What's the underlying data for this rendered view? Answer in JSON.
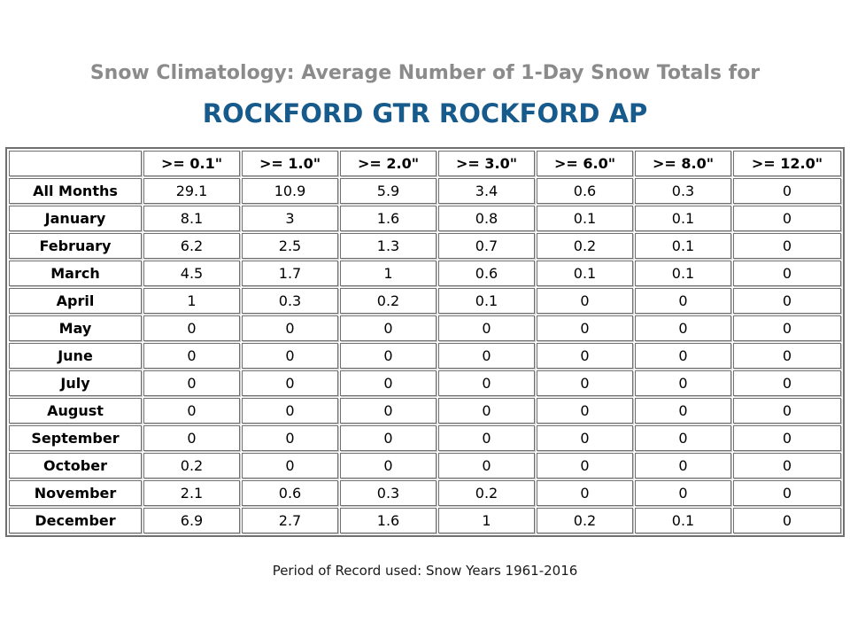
{
  "header": {
    "title": "Snow Climatology: Average Number of 1-Day Snow Totals for",
    "station": "ROCKFORD GTR ROCKFORD AP"
  },
  "footer": {
    "text": "Period of Record used: Snow Years 1961-2016"
  },
  "colors": {
    "title_gray": "#8b8b8b",
    "station_blue": "#175a8c",
    "table_border_gray": "#6f6f6f",
    "text_black": "#000000",
    "background": "#ffffff"
  },
  "chart_data": {
    "type": "table",
    "title": "Snow Climatology: Average Number of 1-Day Snow Totals for ROCKFORD GTR ROCKFORD AP",
    "subtitle": "Period of Record used: Snow Years 1961-2016",
    "columns": [
      "",
      ">= 0.1\"",
      ">= 1.0\"",
      ">= 2.0\"",
      ">= 3.0\"",
      ">= 6.0\"",
      ">= 8.0\"",
      ">= 12.0\""
    ],
    "rows": [
      {
        "label": "All Months",
        "values": [
          "29.1",
          "10.9",
          "5.9",
          "3.4",
          "0.6",
          "0.3",
          "0"
        ]
      },
      {
        "label": "January",
        "values": [
          "8.1",
          "3",
          "1.6",
          "0.8",
          "0.1",
          "0.1",
          "0"
        ]
      },
      {
        "label": "February",
        "values": [
          "6.2",
          "2.5",
          "1.3",
          "0.7",
          "0.2",
          "0.1",
          "0"
        ]
      },
      {
        "label": "March",
        "values": [
          "4.5",
          "1.7",
          "1",
          "0.6",
          "0.1",
          "0.1",
          "0"
        ]
      },
      {
        "label": "April",
        "values": [
          "1",
          "0.3",
          "0.2",
          "0.1",
          "0",
          "0",
          "0"
        ]
      },
      {
        "label": "May",
        "values": [
          "0",
          "0",
          "0",
          "0",
          "0",
          "0",
          "0"
        ]
      },
      {
        "label": "June",
        "values": [
          "0",
          "0",
          "0",
          "0",
          "0",
          "0",
          "0"
        ]
      },
      {
        "label": "July",
        "values": [
          "0",
          "0",
          "0",
          "0",
          "0",
          "0",
          "0"
        ]
      },
      {
        "label": "August",
        "values": [
          "0",
          "0",
          "0",
          "0",
          "0",
          "0",
          "0"
        ]
      },
      {
        "label": "September",
        "values": [
          "0",
          "0",
          "0",
          "0",
          "0",
          "0",
          "0"
        ]
      },
      {
        "label": "October",
        "values": [
          "0.2",
          "0",
          "0",
          "0",
          "0",
          "0",
          "0"
        ]
      },
      {
        "label": "November",
        "values": [
          "2.1",
          "0.6",
          "0.3",
          "0.2",
          "0",
          "0",
          "0"
        ]
      },
      {
        "label": "December",
        "values": [
          "6.9",
          "2.7",
          "1.6",
          "1",
          "0.2",
          "0.1",
          "0"
        ]
      }
    ]
  }
}
